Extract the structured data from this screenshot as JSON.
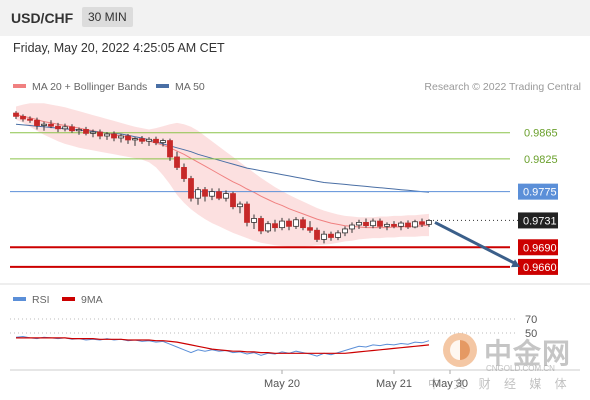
{
  "header": {
    "symbol": "USD/CHF",
    "timeframe": "30 MIN"
  },
  "datetime": "Friday, May 20, 2022 4:25:05 AM CET",
  "credit": "Research © 2022 Trading Central",
  "colors": {
    "ma20": "#f08080",
    "ma50": "#4a6fa5",
    "band": "#fbd5d5",
    "pivot": "#5b8fd8",
    "resistance": "#8bc34a",
    "support": "#cc0000",
    "rsi": "#5b8fd8",
    "rsi_ma": "#cc0000",
    "candle_up": "#2e7d32",
    "candle_down": "#c62828",
    "arrow": "#3b5f8a"
  },
  "watermark": {
    "name": "中金网",
    "url": "CNGOLD.COM.CN",
    "tagline": "中 文 财 经 媒 体",
    "logo": "cngold-logo-icon"
  },
  "chart_data": [
    {
      "type": "candlestick",
      "series": [
        {
          "name": "MA 20 + Bollinger Bands",
          "kind": "line+band"
        },
        {
          "name": "MA 50",
          "kind": "line"
        }
      ],
      "ylim": [
        0.964,
        0.9915
      ],
      "levels": [
        {
          "value": 0.9865,
          "label": "0.9865",
          "role": "resistance"
        },
        {
          "value": 0.9825,
          "label": "0.9825",
          "role": "resistance"
        },
        {
          "value": 0.9775,
          "label": "0.9775",
          "role": "pivot"
        },
        {
          "value": 0.9731,
          "label": "0.9731",
          "role": "last"
        },
        {
          "value": 0.969,
          "label": "0.9690",
          "role": "support"
        },
        {
          "value": 0.966,
          "label": "0.9660",
          "role": "support"
        }
      ],
      "candles": [
        [
          0.9895,
          0.9898,
          0.9886,
          0.989
        ],
        [
          0.989,
          0.9893,
          0.9882,
          0.9886
        ],
        [
          0.9886,
          0.989,
          0.988,
          0.9884
        ],
        [
          0.9884,
          0.9888,
          0.987,
          0.9876
        ],
        [
          0.9876,
          0.9882,
          0.9868,
          0.9878
        ],
        [
          0.9878,
          0.9884,
          0.9872,
          0.9875
        ],
        [
          0.9875,
          0.988,
          0.9866,
          0.9871
        ],
        [
          0.9871,
          0.9879,
          0.9867,
          0.9874
        ],
        [
          0.9874,
          0.9878,
          0.9865,
          0.9868
        ],
        [
          0.9868,
          0.9873,
          0.9862,
          0.987
        ],
        [
          0.987,
          0.9874,
          0.9861,
          0.9864
        ],
        [
          0.9864,
          0.987,
          0.9858,
          0.9866
        ],
        [
          0.9866,
          0.987,
          0.9855,
          0.986
        ],
        [
          0.986,
          0.9866,
          0.9854,
          0.9863
        ],
        [
          0.9863,
          0.9867,
          0.9852,
          0.9857
        ],
        [
          0.9857,
          0.9863,
          0.985,
          0.986
        ],
        [
          0.986,
          0.9863,
          0.9848,
          0.9854
        ],
        [
          0.9854,
          0.9858,
          0.9845,
          0.9856
        ],
        [
          0.9856,
          0.986,
          0.9848,
          0.9852
        ],
        [
          0.9852,
          0.9858,
          0.9845,
          0.9855
        ],
        [
          0.9855,
          0.9859,
          0.9846,
          0.985
        ],
        [
          0.985,
          0.9856,
          0.9844,
          0.9853
        ],
        [
          0.9853,
          0.9856,
          0.9822,
          0.9828
        ],
        [
          0.9828,
          0.9836,
          0.9808,
          0.9812
        ],
        [
          0.9812,
          0.9818,
          0.979,
          0.9795
        ],
        [
          0.9795,
          0.9799,
          0.976,
          0.9765
        ],
        [
          0.9765,
          0.9782,
          0.9755,
          0.9778
        ],
        [
          0.9778,
          0.9782,
          0.976,
          0.9768
        ],
        [
          0.9768,
          0.978,
          0.9762,
          0.9775
        ],
        [
          0.9775,
          0.978,
          0.9762,
          0.9765
        ],
        [
          0.9765,
          0.9777,
          0.976,
          0.9772
        ],
        [
          0.9772,
          0.9775,
          0.9748,
          0.9752
        ],
        [
          0.9752,
          0.976,
          0.9742,
          0.9756
        ],
        [
          0.9756,
          0.976,
          0.9722,
          0.9728
        ],
        [
          0.9728,
          0.974,
          0.9718,
          0.9734
        ],
        [
          0.9734,
          0.9738,
          0.971,
          0.9715
        ],
        [
          0.9715,
          0.973,
          0.9712,
          0.9726
        ],
        [
          0.9726,
          0.9732,
          0.9714,
          0.972
        ],
        [
          0.972,
          0.9735,
          0.9716,
          0.973
        ],
        [
          0.973,
          0.9734,
          0.9716,
          0.9722
        ],
        [
          0.9722,
          0.9736,
          0.9718,
          0.9732
        ],
        [
          0.9732,
          0.9736,
          0.9716,
          0.972
        ],
        [
          0.972,
          0.973,
          0.9712,
          0.9716
        ],
        [
          0.9716,
          0.972,
          0.9698,
          0.9702
        ],
        [
          0.9702,
          0.9715,
          0.9696,
          0.971
        ],
        [
          0.971,
          0.9714,
          0.97,
          0.9705
        ],
        [
          0.9705,
          0.9716,
          0.9701,
          0.9712
        ],
        [
          0.9712,
          0.9722,
          0.9707,
          0.9718
        ],
        [
          0.9718,
          0.9728,
          0.9712,
          0.9724
        ],
        [
          0.9724,
          0.9732,
          0.9718,
          0.9728
        ],
        [
          0.9728,
          0.9734,
          0.972,
          0.9723
        ],
        [
          0.9723,
          0.9734,
          0.9719,
          0.973
        ],
        [
          0.973,
          0.9734,
          0.9718,
          0.9722
        ],
        [
          0.9722,
          0.9728,
          0.9716,
          0.9725
        ],
        [
          0.9725,
          0.973,
          0.9719,
          0.9722
        ],
        [
          0.9722,
          0.973,
          0.9716,
          0.9727
        ],
        [
          0.9727,
          0.9731,
          0.9718,
          0.9721
        ],
        [
          0.9721,
          0.9732,
          0.9719,
          0.9729
        ],
        [
          0.9729,
          0.9734,
          0.9721,
          0.9725
        ],
        [
          0.9725,
          0.9733,
          0.9721,
          0.9731
        ]
      ],
      "ma20": [
        0.9893,
        0.989,
        0.9888,
        0.9885,
        0.9882,
        0.988,
        0.9878,
        0.9876,
        0.9874,
        0.9872,
        0.987,
        0.9868,
        0.9866,
        0.9864,
        0.9862,
        0.986,
        0.9858,
        0.9856,
        0.9854,
        0.9852,
        0.9849,
        0.9846,
        0.9842,
        0.9837,
        0.9832,
        0.9826,
        0.982,
        0.9814,
        0.9808,
        0.9802,
        0.9796,
        0.979,
        0.9785,
        0.9779,
        0.9774,
        0.9768,
        0.9763,
        0.9758,
        0.9754,
        0.9749,
        0.9745,
        0.9741,
        0.9737,
        0.9733,
        0.973,
        0.9727,
        0.9725,
        0.9723,
        0.9722,
        0.9721,
        0.972,
        0.972,
        0.972,
        0.972,
        0.9721,
        0.9721,
        0.9722,
        0.9722,
        0.9723,
        0.9724
      ],
      "bb_upper": [
        0.9905,
        0.9908,
        0.991,
        0.991,
        0.991,
        0.9908,
        0.9906,
        0.9904,
        0.9901,
        0.9898,
        0.9895,
        0.9892,
        0.9889,
        0.9886,
        0.9883,
        0.988,
        0.9877,
        0.9874,
        0.9872,
        0.987,
        0.9872,
        0.9875,
        0.9878,
        0.988,
        0.9878,
        0.9874,
        0.9868,
        0.986,
        0.9852,
        0.9844,
        0.9836,
        0.9828,
        0.982,
        0.9812,
        0.9804,
        0.9796,
        0.9789,
        0.9782,
        0.9776,
        0.977,
        0.9765,
        0.976,
        0.9755,
        0.975,
        0.9746,
        0.9743,
        0.974,
        0.9738,
        0.9737,
        0.9736,
        0.9736,
        0.9736,
        0.9737,
        0.9737,
        0.9738,
        0.9738,
        0.9739,
        0.9739,
        0.974,
        0.9741
      ],
      "bb_lower": [
        0.9885,
        0.988,
        0.9874,
        0.9868,
        0.9862,
        0.9857,
        0.9852,
        0.9848,
        0.9845,
        0.9842,
        0.984,
        0.9838,
        0.9836,
        0.9834,
        0.9832,
        0.983,
        0.9828,
        0.9826,
        0.9824,
        0.982,
        0.9812,
        0.98,
        0.9786,
        0.977,
        0.9758,
        0.9748,
        0.974,
        0.9733,
        0.9727,
        0.9722,
        0.9717,
        0.9712,
        0.9708,
        0.9704,
        0.97,
        0.9697,
        0.9695,
        0.9693,
        0.9692,
        0.9691,
        0.9691,
        0.9691,
        0.9692,
        0.9693,
        0.9694,
        0.9695,
        0.9697,
        0.9699,
        0.97,
        0.9702,
        0.9703,
        0.9704,
        0.9704,
        0.9705,
        0.9705,
        0.9706,
        0.9706,
        0.9706,
        0.9707,
        0.9707
      ],
      "ma50": [
        0.9878,
        0.9877,
        0.9876,
        0.9875,
        0.9874,
        0.9873,
        0.9872,
        0.9871,
        0.987,
        0.9869,
        0.9868,
        0.9867,
        0.9866,
        0.9865,
        0.9864,
        0.9863,
        0.9861,
        0.9859,
        0.9857,
        0.9854,
        0.9851,
        0.9848,
        0.9845,
        0.9842,
        0.9839,
        0.9836,
        0.9832,
        0.9829,
        0.9826,
        0.9823,
        0.982,
        0.9817,
        0.9814,
        0.9811,
        0.9809,
        0.9807,
        0.9805,
        0.9803,
        0.9801,
        0.9799,
        0.9797,
        0.9795,
        0.9793,
        0.9791,
        0.9789,
        0.9788,
        0.9787,
        0.9786,
        0.9785,
        0.9784,
        0.9783,
        0.9782,
        0.9781,
        0.978,
        0.9779,
        0.9778,
        0.9777,
        0.9776,
        0.9775,
        0.9774
      ],
      "projection": {
        "from": 0.9731,
        "to": 0.966,
        "bars_ahead": 13
      }
    },
    {
      "type": "line",
      "series": [
        {
          "name": "RSI",
          "values": [
            44,
            45,
            43,
            42,
            44,
            43,
            42,
            43,
            41,
            42,
            40,
            41,
            40,
            42,
            40,
            41,
            39,
            40,
            38,
            39,
            37,
            38,
            34,
            30,
            26,
            22,
            26,
            24,
            26,
            24,
            25,
            22,
            23,
            20,
            22,
            18,
            21,
            20,
            23,
            21,
            24,
            22,
            20,
            17,
            21,
            19,
            22,
            25,
            28,
            31,
            30,
            33,
            32,
            34,
            33,
            35,
            34,
            37,
            36,
            39
          ]
        },
        {
          "name": "9MA",
          "values": [
            43,
            43,
            43,
            43,
            43,
            43,
            43,
            43,
            42,
            42,
            42,
            42,
            41,
            41,
            41,
            41,
            40,
            40,
            40,
            40,
            39,
            39,
            38,
            37,
            35,
            33,
            31,
            29,
            27,
            26,
            25,
            24,
            24,
            23,
            23,
            22,
            22,
            21,
            21,
            21,
            21,
            21,
            21,
            21,
            21,
            21,
            21,
            21,
            22,
            23,
            24,
            25,
            26,
            27,
            28,
            29,
            30,
            31,
            32,
            33
          ]
        }
      ],
      "ylim": [
        0,
        80
      ],
      "ticks": [
        {
          "value": 70,
          "label": "70"
        },
        {
          "value": 50,
          "label": "50"
        }
      ],
      "x_labels": [
        {
          "index": 38,
          "label": "May 20"
        },
        {
          "index": 54,
          "label": "May 21"
        },
        {
          "index": 62,
          "label": "May 30"
        }
      ]
    }
  ]
}
